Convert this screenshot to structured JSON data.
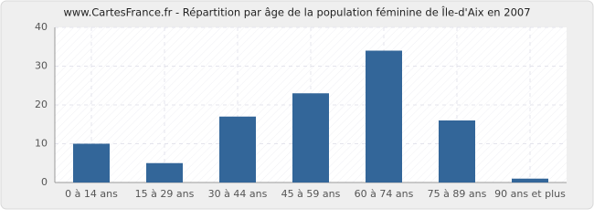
{
  "chart_data": {
    "type": "bar",
    "title": "www.CartesFrance.fr - Répartition par âge de la population féminine de Île-d'Aix en 2007",
    "categories": [
      "0 à 14 ans",
      "15 à 29 ans",
      "30 à 44 ans",
      "45 à 59 ans",
      "60 à 74 ans",
      "75 à 89 ans",
      "90 ans et plus"
    ],
    "values": [
      10,
      5,
      17,
      23,
      34,
      16,
      1
    ],
    "color": "#336699",
    "ylim": [
      0,
      40
    ],
    "yticks": [
      0,
      10,
      20,
      30,
      40
    ],
    "grid": true
  }
}
